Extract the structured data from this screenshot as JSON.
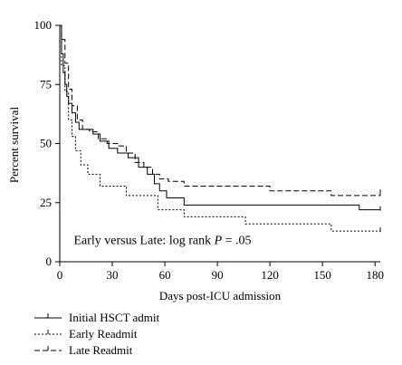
{
  "chart_data": {
    "type": "line",
    "step": true,
    "xlabel": "Days post-ICU admission",
    "ylabel": "Percent survival",
    "xlim": [
      0,
      183
    ],
    "ylim": [
      0,
      100
    ],
    "xticks": [
      0,
      30,
      60,
      90,
      120,
      150,
      180
    ],
    "yticks": [
      0,
      25,
      50,
      75,
      100
    ],
    "grid": false,
    "legend_position": "bottom-left",
    "annotation": {
      "prefix": "Early versus Late: log rank ",
      "variable": "P",
      "suffix": " = .05",
      "x": 8,
      "y": 7.5
    },
    "series": [
      {
        "name": "Initial HSCT admit",
        "dash": "solid",
        "points": [
          [
            0,
            100
          ],
          [
            1,
            88
          ],
          [
            2,
            80
          ],
          [
            3,
            75
          ],
          [
            4,
            70
          ],
          [
            5,
            67
          ],
          [
            7,
            63
          ],
          [
            9,
            59
          ],
          [
            11,
            56
          ],
          [
            19,
            54
          ],
          [
            23,
            51
          ],
          [
            28,
            48
          ],
          [
            33,
            46
          ],
          [
            39,
            44
          ],
          [
            45,
            40
          ],
          [
            50,
            37
          ],
          [
            54,
            33
          ],
          [
            57,
            30
          ],
          [
            61,
            27
          ],
          [
            71,
            24
          ],
          [
            171,
            22
          ],
          [
            183,
            22
          ]
        ]
      },
      {
        "name": "Early Readmit",
        "dash": "short",
        "points": [
          [
            0,
            100
          ],
          [
            1,
            83
          ],
          [
            3,
            72
          ],
          [
            5,
            60
          ],
          [
            7,
            53
          ],
          [
            9,
            47
          ],
          [
            12,
            41
          ],
          [
            16,
            37
          ],
          [
            23,
            32
          ],
          [
            38,
            28
          ],
          [
            56,
            22
          ],
          [
            71,
            19
          ],
          [
            106,
            16
          ],
          [
            155,
            13
          ],
          [
            183,
            13
          ]
        ]
      },
      {
        "name": "Late Readmit",
        "dash": "long",
        "points": [
          [
            0,
            100
          ],
          [
            1,
            94
          ],
          [
            3,
            84
          ],
          [
            5,
            73
          ],
          [
            7,
            66
          ],
          [
            10,
            60
          ],
          [
            13,
            56
          ],
          [
            17,
            55
          ],
          [
            22,
            52
          ],
          [
            27,
            50
          ],
          [
            33,
            49
          ],
          [
            38,
            46
          ],
          [
            43,
            42
          ],
          [
            48,
            40
          ],
          [
            53,
            37
          ],
          [
            57,
            35
          ],
          [
            62,
            34
          ],
          [
            71,
            32
          ],
          [
            120,
            30
          ],
          [
            155,
            28
          ],
          [
            183,
            29
          ]
        ]
      }
    ]
  }
}
